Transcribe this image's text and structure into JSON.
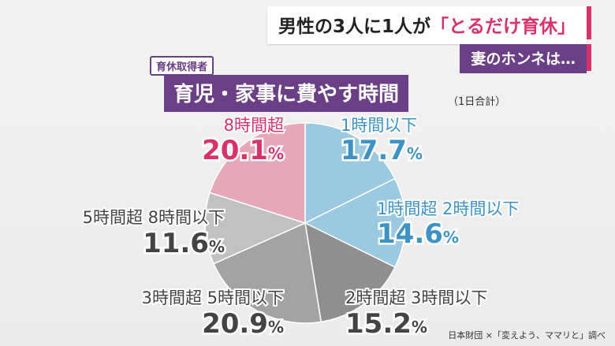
{
  "headline": {
    "before": "男性の3人に1人が",
    "highlight": "「とるだけ育休」"
  },
  "subheadline": "妻のホンネは…",
  "tag": "育休取得者",
  "chart_title": "育児・家事に費やす時間",
  "note": "（1日合計）",
  "source": "日本財団 ×「変えよう、ママリと」調べ",
  "colors": {
    "accent": "#d8326a",
    "purple": "#6a3f86"
  },
  "chart_data": {
    "type": "pie",
    "title": "育児・家事に費やす時間",
    "slices": [
      {
        "label": "1時間以下",
        "value": 17.7,
        "color": "#9cc9e2",
        "text_color": "#3d93c4"
      },
      {
        "label": "1時間超 2時間以下",
        "value": 14.6,
        "color": "#9cc9e2",
        "text_color": "#3d93c4"
      },
      {
        "label": "2時間超 3時間以下",
        "value": 15.2,
        "color": "#8f8f8f",
        "text_color": "#444444"
      },
      {
        "label": "3時間超 5時間以下",
        "value": 20.9,
        "color": "#a3a3a3",
        "text_color": "#444444"
      },
      {
        "label": "5時間超 8時間以下",
        "value": 11.6,
        "color": "#c1c1c1",
        "text_color": "#444444"
      },
      {
        "label": "8時間超",
        "value": 20.1,
        "color": "#e6a8b8",
        "text_color": "#d8326a"
      }
    ],
    "unit": "%"
  }
}
